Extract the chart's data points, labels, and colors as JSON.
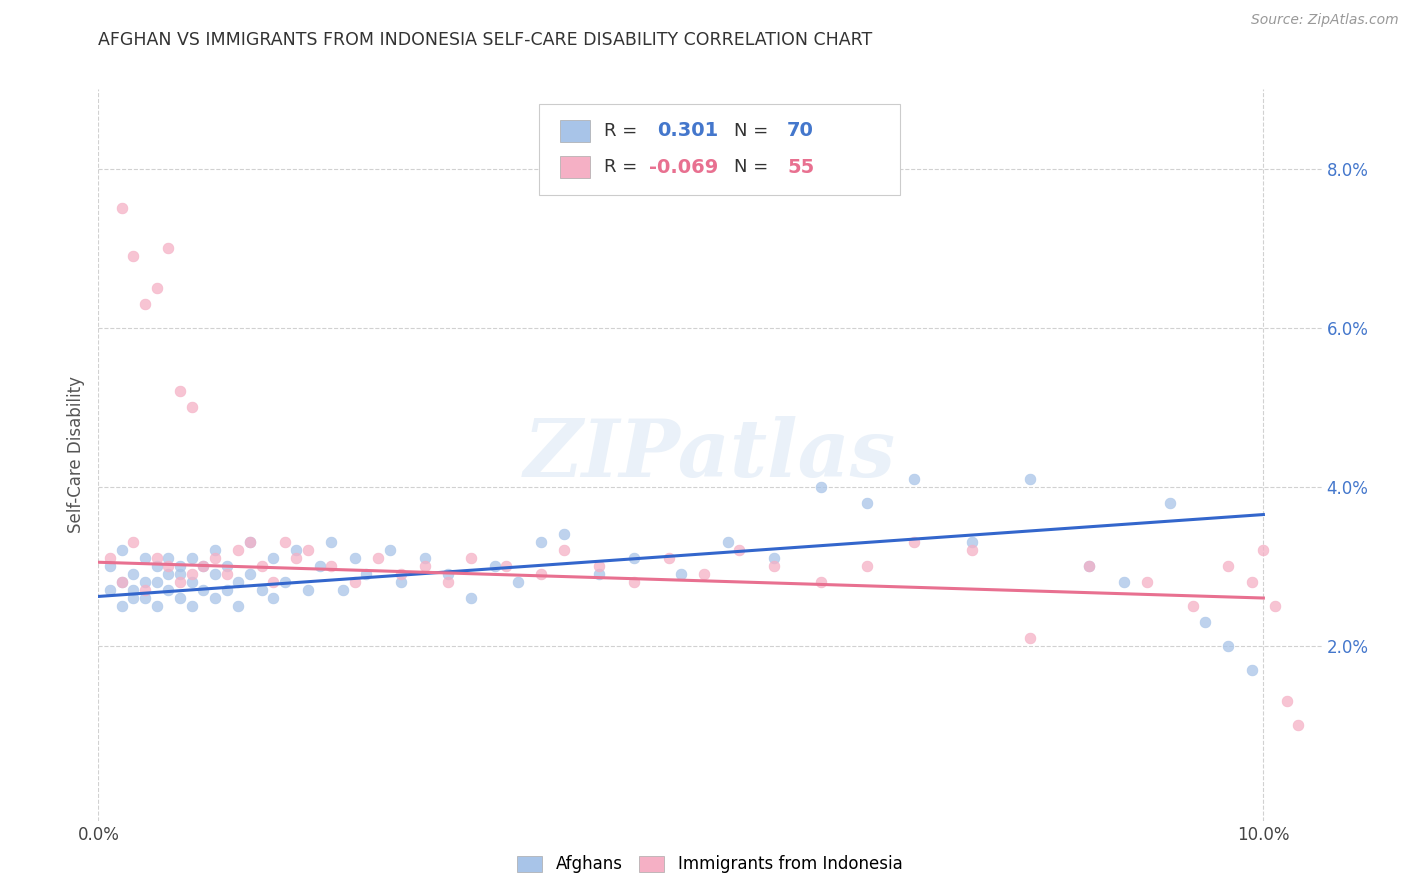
{
  "title": "AFGHAN VS IMMIGRANTS FROM INDONESIA SELF-CARE DISABILITY CORRELATION CHART",
  "source": "Source: ZipAtlas.com",
  "ylabel": "Self-Care Disability",
  "xlim": [
    0.0,
    0.105
  ],
  "ylim": [
    -0.002,
    0.09
  ],
  "yticks": [
    0.02,
    0.04,
    0.06,
    0.08
  ],
  "ytick_labels": [
    "2.0%",
    "4.0%",
    "6.0%",
    "8.0%"
  ],
  "xtick_labels": [
    "0.0%",
    "10.0%"
  ],
  "xtick_positions": [
    0.0,
    0.1
  ],
  "afghan_R": "0.301",
  "afghan_N": "70",
  "indonesia_R": "-0.069",
  "indonesia_N": "55",
  "afghan_color": "#a8c4e8",
  "indonesia_color": "#f5b0c5",
  "afghan_line_color": "#3366cc",
  "indonesia_line_color": "#e87090",
  "watermark": "ZIPatlas",
  "background_color": "#ffffff",
  "afghan_line_x0": 0.0,
  "afghan_line_y0": 0.0262,
  "afghan_line_x1": 0.1,
  "afghan_line_y1": 0.0365,
  "indonesia_line_x0": 0.0,
  "indonesia_line_y0": 0.0305,
  "indonesia_line_x1": 0.1,
  "indonesia_line_y1": 0.026,
  "afghan_x": [
    0.001,
    0.001,
    0.002,
    0.002,
    0.002,
    0.003,
    0.003,
    0.003,
    0.004,
    0.004,
    0.004,
    0.005,
    0.005,
    0.005,
    0.006,
    0.006,
    0.006,
    0.007,
    0.007,
    0.007,
    0.008,
    0.008,
    0.008,
    0.009,
    0.009,
    0.01,
    0.01,
    0.01,
    0.011,
    0.011,
    0.012,
    0.012,
    0.013,
    0.013,
    0.014,
    0.015,
    0.015,
    0.016,
    0.017,
    0.018,
    0.019,
    0.02,
    0.021,
    0.022,
    0.023,
    0.025,
    0.026,
    0.028,
    0.03,
    0.032,
    0.034,
    0.036,
    0.038,
    0.04,
    0.043,
    0.046,
    0.05,
    0.054,
    0.058,
    0.062,
    0.066,
    0.07,
    0.075,
    0.08,
    0.085,
    0.088,
    0.092,
    0.095,
    0.097,
    0.099
  ],
  "afghan_y": [
    0.027,
    0.03,
    0.025,
    0.028,
    0.032,
    0.026,
    0.029,
    0.027,
    0.028,
    0.031,
    0.026,
    0.03,
    0.025,
    0.028,
    0.027,
    0.031,
    0.029,
    0.026,
    0.029,
    0.03,
    0.025,
    0.028,
    0.031,
    0.027,
    0.03,
    0.026,
    0.029,
    0.032,
    0.027,
    0.03,
    0.025,
    0.028,
    0.033,
    0.029,
    0.027,
    0.031,
    0.026,
    0.028,
    0.032,
    0.027,
    0.03,
    0.033,
    0.027,
    0.031,
    0.029,
    0.032,
    0.028,
    0.031,
    0.029,
    0.026,
    0.03,
    0.028,
    0.033,
    0.034,
    0.029,
    0.031,
    0.029,
    0.033,
    0.031,
    0.04,
    0.038,
    0.041,
    0.033,
    0.041,
    0.03,
    0.028,
    0.038,
    0.023,
    0.02,
    0.017
  ],
  "indonesia_x": [
    0.001,
    0.002,
    0.002,
    0.003,
    0.003,
    0.004,
    0.004,
    0.005,
    0.005,
    0.006,
    0.006,
    0.007,
    0.007,
    0.008,
    0.008,
    0.009,
    0.01,
    0.011,
    0.012,
    0.013,
    0.014,
    0.015,
    0.016,
    0.017,
    0.018,
    0.02,
    0.022,
    0.024,
    0.026,
    0.028,
    0.03,
    0.032,
    0.035,
    0.038,
    0.04,
    0.043,
    0.046,
    0.049,
    0.052,
    0.055,
    0.058,
    0.062,
    0.066,
    0.07,
    0.075,
    0.08,
    0.085,
    0.09,
    0.094,
    0.097,
    0.099,
    0.1,
    0.101,
    0.102,
    0.103
  ],
  "indonesia_y": [
    0.031,
    0.028,
    0.075,
    0.033,
    0.069,
    0.027,
    0.063,
    0.065,
    0.031,
    0.07,
    0.03,
    0.052,
    0.028,
    0.05,
    0.029,
    0.03,
    0.031,
    0.029,
    0.032,
    0.033,
    0.03,
    0.028,
    0.033,
    0.031,
    0.032,
    0.03,
    0.028,
    0.031,
    0.029,
    0.03,
    0.028,
    0.031,
    0.03,
    0.029,
    0.032,
    0.03,
    0.028,
    0.031,
    0.029,
    0.032,
    0.03,
    0.028,
    0.03,
    0.033,
    0.032,
    0.021,
    0.03,
    0.028,
    0.025,
    0.03,
    0.028,
    0.032,
    0.025,
    0.013,
    0.01
  ]
}
